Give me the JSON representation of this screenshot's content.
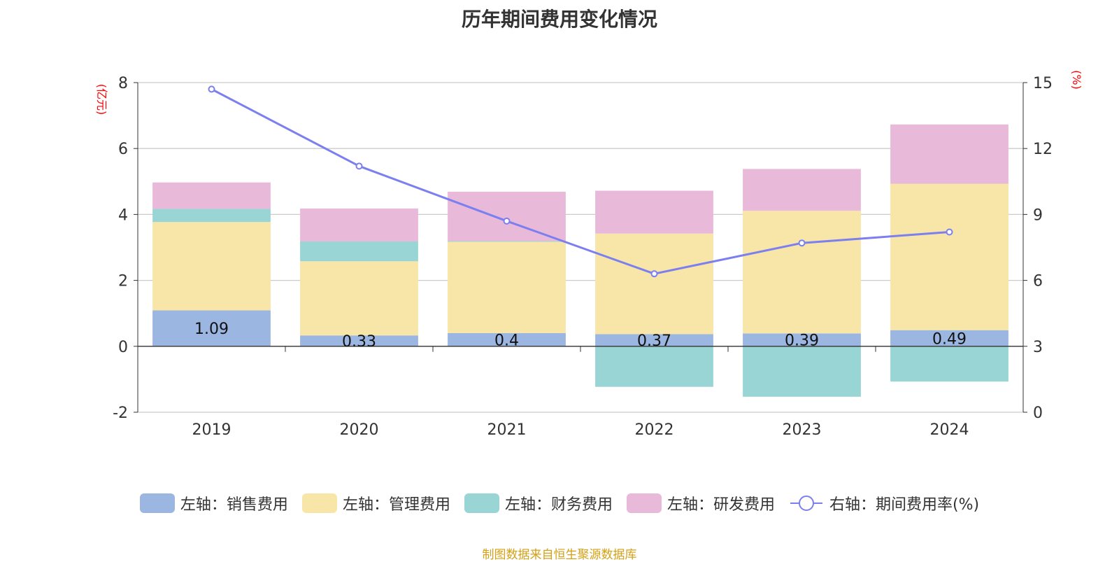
{
  "chart_data": {
    "type": "bar",
    "title": "历年期间费用变化情况",
    "categories": [
      "2019",
      "2020",
      "2021",
      "2022",
      "2023",
      "2024"
    ],
    "series": [
      {
        "name": "左轴：销售费用",
        "axis": "left",
        "color": "#9bb6e0",
        "values": [
          1.09,
          0.33,
          0.4,
          0.37,
          0.39,
          0.49
        ]
      },
      {
        "name": "左轴：管理费用",
        "axis": "left",
        "color": "#f8e6a8",
        "values": [
          2.68,
          2.25,
          2.77,
          3.05,
          3.72,
          4.44
        ]
      },
      {
        "name": "左轴：财务费用",
        "axis": "left",
        "color": "#99d5d5",
        "values": [
          0.4,
          0.6,
          0.02,
          -1.23,
          -1.53,
          -1.07
        ]
      },
      {
        "name": "左轴：研发费用",
        "axis": "left",
        "color": "#e8b9d9",
        "values": [
          0.8,
          1.0,
          1.5,
          1.3,
          1.27,
          1.8
        ]
      },
      {
        "name": "右轴：期间费用率(%)",
        "axis": "right",
        "type": "line",
        "color": "#7b7ff0",
        "values": [
          14.7,
          11.2,
          8.7,
          6.3,
          7.7,
          8.2
        ]
      }
    ],
    "data_labels": [
      "1.09",
      "0.33",
      "0.4",
      "0.37",
      "0.39",
      "0.49"
    ],
    "left_axis": {
      "label": "(亿元)",
      "min": -2,
      "max": 8,
      "ticks": [
        "-2",
        "0",
        "2",
        "4",
        "6",
        "8"
      ]
    },
    "right_axis": {
      "label": "(%)",
      "min": 0,
      "max": 15,
      "ticks": [
        "0",
        "3",
        "6",
        "9",
        "12",
        "15"
      ]
    },
    "grid": true,
    "legend_position": "bottom"
  },
  "source": "制图数据来自恒生聚源数据库"
}
